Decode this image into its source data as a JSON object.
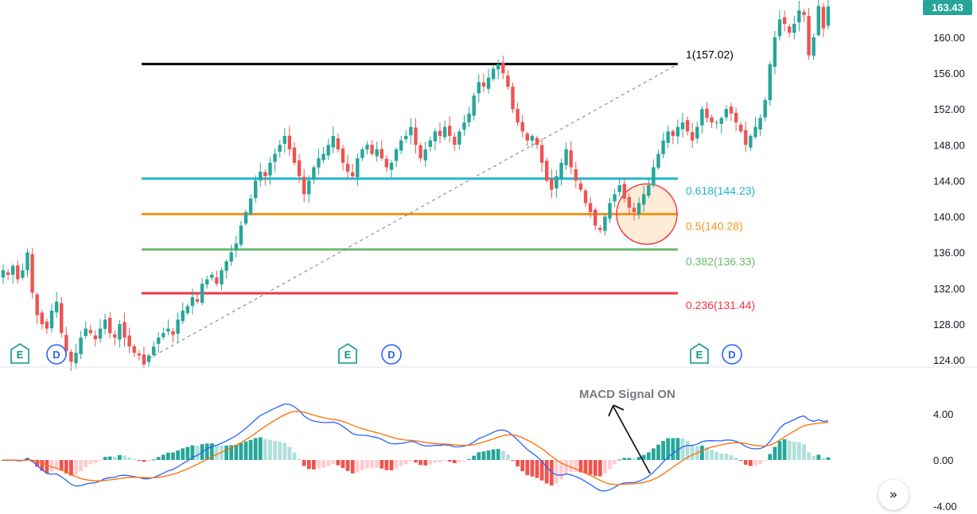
{
  "chart_data": {
    "type": "candlestick",
    "price_axis": {
      "ticks": [
        "160.00",
        "156.00",
        "152.00",
        "148.00",
        "144.00",
        "140.00",
        "136.00",
        "132.00",
        "128.00",
        "124.00"
      ],
      "tick_values": [
        160,
        156,
        152,
        148,
        144,
        140,
        136,
        132,
        128,
        124
      ],
      "range": [
        124,
        163.43
      ]
    },
    "last_price": {
      "label": "163.43",
      "value": 163.43,
      "color": "#26a69a"
    },
    "colors": {
      "up": "#26a69a",
      "down": "#ef5350",
      "macd_line": "#2962ff",
      "signal_line": "#ff6d00"
    },
    "closes": [
      134.0,
      133.5,
      134.5,
      133.0,
      134.0,
      136.0,
      131.5,
      129.0,
      128.0,
      127.5,
      129.5,
      130.5,
      127.0,
      125.0,
      123.8,
      124.8,
      126.5,
      127.5,
      127.0,
      126.3,
      127.5,
      128.5,
      127.0,
      126.5,
      128.0,
      126.5,
      125.5,
      124.8,
      124.5,
      123.5,
      124.5,
      125.5,
      126.5,
      127.0,
      127.5,
      126.8,
      128.5,
      129.5,
      130.0,
      131.0,
      130.5,
      132.5,
      133.0,
      133.5,
      132.5,
      134.0,
      135.0,
      136.0,
      137.0,
      139.0,
      140.5,
      142.0,
      144.0,
      145.0,
      144.5,
      146.0,
      147.0,
      148.0,
      149.0,
      147.5,
      146.0,
      144.5,
      142.5,
      144.0,
      145.5,
      146.5,
      147.0,
      148.0,
      149.0,
      147.5,
      146.0,
      145.0,
      144.5,
      146.5,
      147.5,
      148.0,
      147.0,
      147.5,
      146.5,
      145.5,
      146.0,
      147.5,
      148.5,
      149.0,
      150.0,
      148.0,
      146.5,
      147.5,
      148.5,
      149.5,
      149.0,
      150.0,
      149.0,
      148.0,
      149.5,
      150.5,
      151.5,
      153.5,
      155.0,
      154.5,
      155.5,
      156.5,
      157.0,
      156.0,
      154.5,
      152.0,
      150.5,
      149.5,
      148.5,
      149.0,
      148.0,
      146.0,
      144.0,
      143.0,
      144.5,
      146.0,
      147.5,
      145.5,
      144.0,
      143.0,
      141.5,
      140.5,
      139.0,
      138.5,
      140.0,
      141.5,
      142.5,
      143.5,
      142.0,
      141.0,
      140.5,
      141.5,
      142.5,
      143.5,
      145.5,
      147.0,
      148.5,
      149.5,
      149.0,
      150.0,
      150.5,
      149.5,
      148.5,
      150.0,
      152.0,
      151.0,
      150.5,
      150.5,
      151.0,
      152.0,
      151.5,
      150.5,
      149.5,
      148.0,
      149.0,
      150.0,
      151.0,
      153.0,
      157.0,
      160.0,
      162.0,
      161.5,
      160.5,
      161.5,
      163.0,
      162.5,
      158.0,
      160.0,
      163.5,
      161.0,
      163.43
    ],
    "fibonacci": {
      "levels": [
        {
          "label": "1(157.02)",
          "value": 157.02,
          "color": "#000000"
        },
        {
          "label": "0.618(144.23)",
          "value": 144.23,
          "color": "#22b6c9"
        },
        {
          "label": "0.5(140.28)",
          "value": 140.28,
          "color": "#f7931a"
        },
        {
          "label": "0.382(136.33)",
          "value": 136.33,
          "color": "#66bb6a"
        },
        {
          "label": "0.236(131.44)",
          "value": 131.44,
          "color": "#f23645"
        }
      ]
    },
    "events": [
      {
        "type": "earnings",
        "label": "E",
        "color": "#089981"
      },
      {
        "type": "dividend",
        "label": "D",
        "color": "#2962ff"
      },
      {
        "type": "earnings",
        "label": "E",
        "color": "#089981"
      },
      {
        "type": "dividend",
        "label": "D",
        "color": "#2962ff"
      },
      {
        "type": "earnings",
        "label": "E",
        "color": "#089981"
      },
      {
        "type": "dividend",
        "label": "D",
        "color": "#2962ff"
      }
    ],
    "macd_panel": {
      "ticks": [
        "4.00",
        "0.00",
        "-4.00"
      ],
      "tick_values": [
        4,
        0,
        -4
      ],
      "annotation": "MACD Signal ON"
    }
  },
  "controls": {
    "scroll_icon": "double-chevron-right-icon",
    "scroll_glyph": "»"
  }
}
